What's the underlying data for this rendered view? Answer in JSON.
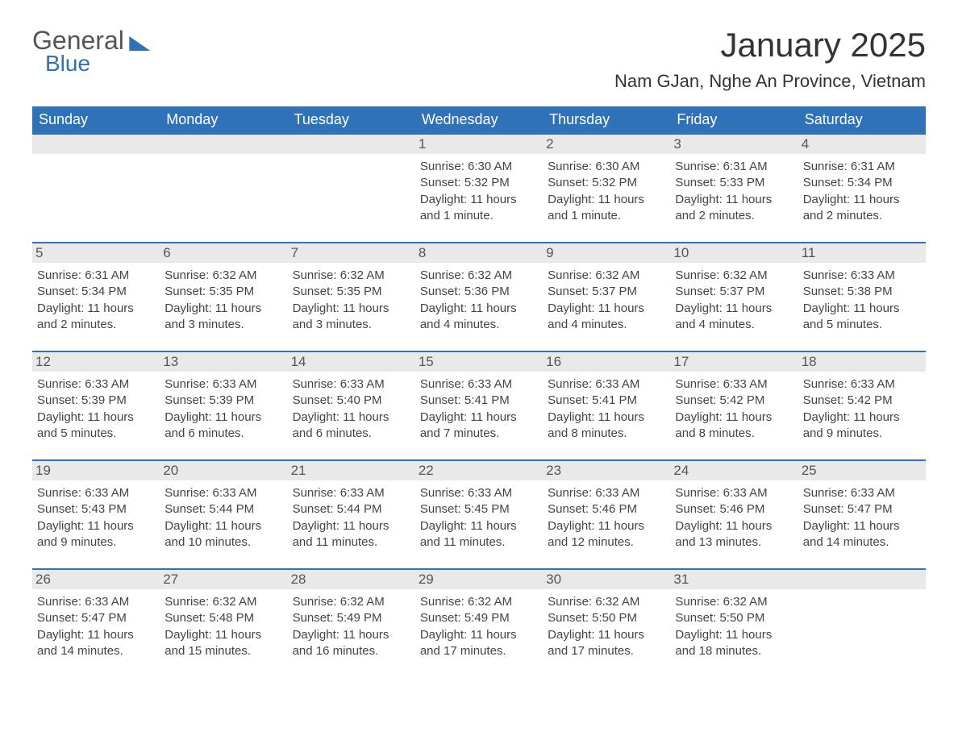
{
  "brand": {
    "general": "General",
    "blue": "Blue"
  },
  "header": {
    "month": "January 2025",
    "location": "Nam GJan, Nghe An Province, Vietnam"
  },
  "colors": {
    "accent": "#2f72b7",
    "daynum_bg": "#e9e9e9",
    "text": "#333333",
    "body_text": "#444444",
    "background": "#ffffff"
  },
  "typography": {
    "title_fontsize": 42,
    "location_fontsize": 22,
    "header_fontsize": 18,
    "daynum_fontsize": 17,
    "cell_fontsize": 15,
    "font_family": "Arial"
  },
  "calendar": {
    "columns": [
      "Sunday",
      "Monday",
      "Tuesday",
      "Wednesday",
      "Thursday",
      "Friday",
      "Saturday"
    ],
    "weeks": [
      [
        {
          "day": "",
          "sunrise": "",
          "sunset": "",
          "daylight": ""
        },
        {
          "day": "",
          "sunrise": "",
          "sunset": "",
          "daylight": ""
        },
        {
          "day": "",
          "sunrise": "",
          "sunset": "",
          "daylight": ""
        },
        {
          "day": "1",
          "sunrise": "Sunrise: 6:30 AM",
          "sunset": "Sunset: 5:32 PM",
          "daylight": "Daylight: 11 hours and 1 minute."
        },
        {
          "day": "2",
          "sunrise": "Sunrise: 6:30 AM",
          "sunset": "Sunset: 5:32 PM",
          "daylight": "Daylight: 11 hours and 1 minute."
        },
        {
          "day": "3",
          "sunrise": "Sunrise: 6:31 AM",
          "sunset": "Sunset: 5:33 PM",
          "daylight": "Daylight: 11 hours and 2 minutes."
        },
        {
          "day": "4",
          "sunrise": "Sunrise: 6:31 AM",
          "sunset": "Sunset: 5:34 PM",
          "daylight": "Daylight: 11 hours and 2 minutes."
        }
      ],
      [
        {
          "day": "5",
          "sunrise": "Sunrise: 6:31 AM",
          "sunset": "Sunset: 5:34 PM",
          "daylight": "Daylight: 11 hours and 2 minutes."
        },
        {
          "day": "6",
          "sunrise": "Sunrise: 6:32 AM",
          "sunset": "Sunset: 5:35 PM",
          "daylight": "Daylight: 11 hours and 3 minutes."
        },
        {
          "day": "7",
          "sunrise": "Sunrise: 6:32 AM",
          "sunset": "Sunset: 5:35 PM",
          "daylight": "Daylight: 11 hours and 3 minutes."
        },
        {
          "day": "8",
          "sunrise": "Sunrise: 6:32 AM",
          "sunset": "Sunset: 5:36 PM",
          "daylight": "Daylight: 11 hours and 4 minutes."
        },
        {
          "day": "9",
          "sunrise": "Sunrise: 6:32 AM",
          "sunset": "Sunset: 5:37 PM",
          "daylight": "Daylight: 11 hours and 4 minutes."
        },
        {
          "day": "10",
          "sunrise": "Sunrise: 6:32 AM",
          "sunset": "Sunset: 5:37 PM",
          "daylight": "Daylight: 11 hours and 4 minutes."
        },
        {
          "day": "11",
          "sunrise": "Sunrise: 6:33 AM",
          "sunset": "Sunset: 5:38 PM",
          "daylight": "Daylight: 11 hours and 5 minutes."
        }
      ],
      [
        {
          "day": "12",
          "sunrise": "Sunrise: 6:33 AM",
          "sunset": "Sunset: 5:39 PM",
          "daylight": "Daylight: 11 hours and 5 minutes."
        },
        {
          "day": "13",
          "sunrise": "Sunrise: 6:33 AM",
          "sunset": "Sunset: 5:39 PM",
          "daylight": "Daylight: 11 hours and 6 minutes."
        },
        {
          "day": "14",
          "sunrise": "Sunrise: 6:33 AM",
          "sunset": "Sunset: 5:40 PM",
          "daylight": "Daylight: 11 hours and 6 minutes."
        },
        {
          "day": "15",
          "sunrise": "Sunrise: 6:33 AM",
          "sunset": "Sunset: 5:41 PM",
          "daylight": "Daylight: 11 hours and 7 minutes."
        },
        {
          "day": "16",
          "sunrise": "Sunrise: 6:33 AM",
          "sunset": "Sunset: 5:41 PM",
          "daylight": "Daylight: 11 hours and 8 minutes."
        },
        {
          "day": "17",
          "sunrise": "Sunrise: 6:33 AM",
          "sunset": "Sunset: 5:42 PM",
          "daylight": "Daylight: 11 hours and 8 minutes."
        },
        {
          "day": "18",
          "sunrise": "Sunrise: 6:33 AM",
          "sunset": "Sunset: 5:42 PM",
          "daylight": "Daylight: 11 hours and 9 minutes."
        }
      ],
      [
        {
          "day": "19",
          "sunrise": "Sunrise: 6:33 AM",
          "sunset": "Sunset: 5:43 PM",
          "daylight": "Daylight: 11 hours and 9 minutes."
        },
        {
          "day": "20",
          "sunrise": "Sunrise: 6:33 AM",
          "sunset": "Sunset: 5:44 PM",
          "daylight": "Daylight: 11 hours and 10 minutes."
        },
        {
          "day": "21",
          "sunrise": "Sunrise: 6:33 AM",
          "sunset": "Sunset: 5:44 PM",
          "daylight": "Daylight: 11 hours and 11 minutes."
        },
        {
          "day": "22",
          "sunrise": "Sunrise: 6:33 AM",
          "sunset": "Sunset: 5:45 PM",
          "daylight": "Daylight: 11 hours and 11 minutes."
        },
        {
          "day": "23",
          "sunrise": "Sunrise: 6:33 AM",
          "sunset": "Sunset: 5:46 PM",
          "daylight": "Daylight: 11 hours and 12 minutes."
        },
        {
          "day": "24",
          "sunrise": "Sunrise: 6:33 AM",
          "sunset": "Sunset: 5:46 PM",
          "daylight": "Daylight: 11 hours and 13 minutes."
        },
        {
          "day": "25",
          "sunrise": "Sunrise: 6:33 AM",
          "sunset": "Sunset: 5:47 PM",
          "daylight": "Daylight: 11 hours and 14 minutes."
        }
      ],
      [
        {
          "day": "26",
          "sunrise": "Sunrise: 6:33 AM",
          "sunset": "Sunset: 5:47 PM",
          "daylight": "Daylight: 11 hours and 14 minutes."
        },
        {
          "day": "27",
          "sunrise": "Sunrise: 6:32 AM",
          "sunset": "Sunset: 5:48 PM",
          "daylight": "Daylight: 11 hours and 15 minutes."
        },
        {
          "day": "28",
          "sunrise": "Sunrise: 6:32 AM",
          "sunset": "Sunset: 5:49 PM",
          "daylight": "Daylight: 11 hours and 16 minutes."
        },
        {
          "day": "29",
          "sunrise": "Sunrise: 6:32 AM",
          "sunset": "Sunset: 5:49 PM",
          "daylight": "Daylight: 11 hours and 17 minutes."
        },
        {
          "day": "30",
          "sunrise": "Sunrise: 6:32 AM",
          "sunset": "Sunset: 5:50 PM",
          "daylight": "Daylight: 11 hours and 17 minutes."
        },
        {
          "day": "31",
          "sunrise": "Sunrise: 6:32 AM",
          "sunset": "Sunset: 5:50 PM",
          "daylight": "Daylight: 11 hours and 18 minutes."
        },
        {
          "day": "",
          "sunrise": "",
          "sunset": "",
          "daylight": ""
        }
      ]
    ]
  }
}
